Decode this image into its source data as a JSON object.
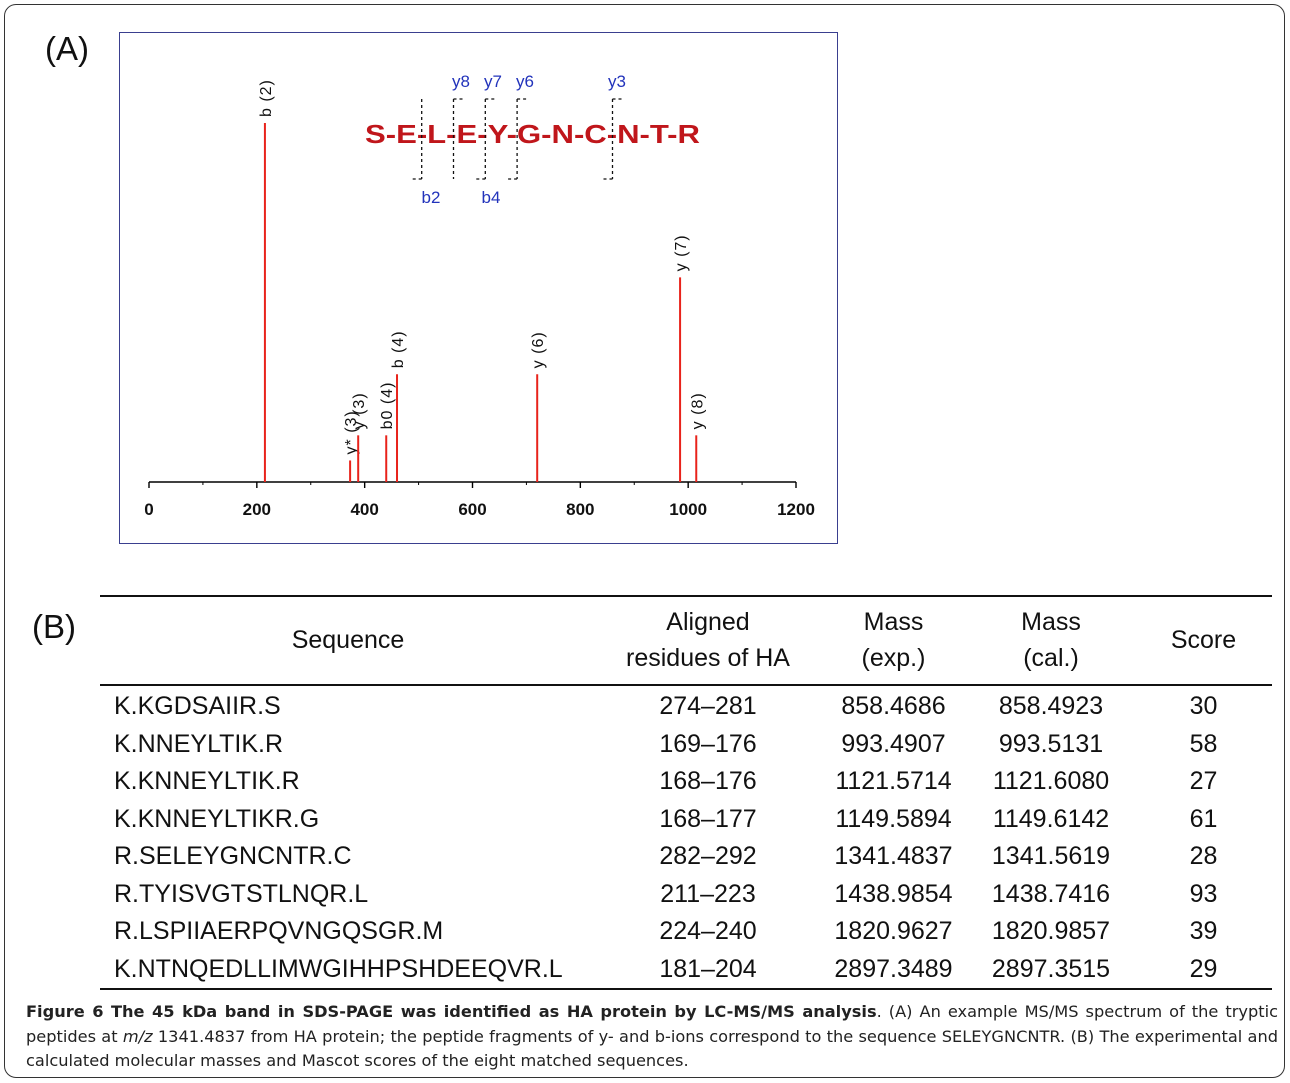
{
  "panel_a_label": "(A)",
  "panel_b_label": "(B)",
  "chart_data": {
    "type": "bar",
    "title": "",
    "xlabel": "",
    "ylabel": "",
    "xlim": [
      0,
      1200
    ],
    "x_ticks": [
      "0",
      "200",
      "400",
      "600",
      "800",
      "1000",
      "1200"
    ],
    "peaks": [
      {
        "label": "b (2)",
        "x": 215,
        "intensity": 1.0
      },
      {
        "label": "y* (3)",
        "x": 373,
        "intensity": 0.06
      },
      {
        "label": "y (3)",
        "x": 388,
        "intensity": 0.13
      },
      {
        "label": "b0 (4)",
        "x": 440,
        "intensity": 0.13
      },
      {
        "label": "b (4)",
        "x": 460,
        "intensity": 0.3
      },
      {
        "label": "y (6)",
        "x": 720,
        "intensity": 0.3
      },
      {
        "label": "y (7)",
        "x": 985,
        "intensity": 0.57
      },
      {
        "label": "y (8)",
        "x": 1015,
        "intensity": 0.13
      }
    ],
    "color": "#e8231b",
    "grid": false
  },
  "sequence_annotation": {
    "residues": [
      "S",
      "E",
      "L",
      "E",
      "Y",
      "G",
      "N",
      "C",
      "N",
      "T",
      "R"
    ],
    "text": "S-E-L-E-Y-G-N-C-N-T-R",
    "y_ions": [
      "y8",
      "y7",
      "y6",
      "y3"
    ],
    "b_ions": [
      "b2",
      "b4"
    ],
    "residue_color": "#c0161b",
    "ion_color": "#2233bb"
  },
  "table": {
    "headers": [
      [
        "Sequence"
      ],
      [
        "Aligned",
        "residues of HA"
      ],
      [
        "Mass",
        "(exp.)"
      ],
      [
        "Mass",
        "(cal.)"
      ],
      [
        "Score"
      ]
    ],
    "rows": [
      [
        "K.KGDSAIIR.S",
        "274–281",
        "858.4686",
        "858.4923",
        "30"
      ],
      [
        "K.NNEYLTIK.R",
        "169–176",
        "993.4907",
        "993.5131",
        "58"
      ],
      [
        "K.KNNEYLTIK.R",
        "168–176",
        "1121.5714",
        "1121.6080",
        "27"
      ],
      [
        "K.KNNEYLTIKR.G",
        "168–177",
        "1149.5894",
        "1149.6142",
        "61"
      ],
      [
        "R.SELEYGNCNTR.C",
        "282–292",
        "1341.4837",
        "1341.5619",
        "28"
      ],
      [
        "R.TYISVGTSTLNQR.L",
        "211–223",
        "1438.9854",
        "1438.7416",
        "93"
      ],
      [
        "R.LSPIIAERPQVNGQSGR.M",
        "224–240",
        "1820.9627",
        "1820.9857",
        "39"
      ],
      [
        "K.NTNQEDLLIMWGIHHPSHDEEQVR.L",
        "181–204",
        "2897.3489",
        "2897.3515",
        "29"
      ]
    ]
  },
  "caption": {
    "title": "Figure 6 The 45 kDa band in SDS-PAGE was identified as HA protein by LC-MS/MS analysis",
    "part1": ". (A) An example MS/MS spectrum of the tryptic peptides at ",
    "mz_italic": "m/z",
    "part2": " 1341.4837 from HA protein; the peptide fragments of y- and b-ions correspond to the sequence SELEYGNCNTR. (B) The experimental and calculated molecular masses and Mascot scores of the eight matched sequences."
  }
}
